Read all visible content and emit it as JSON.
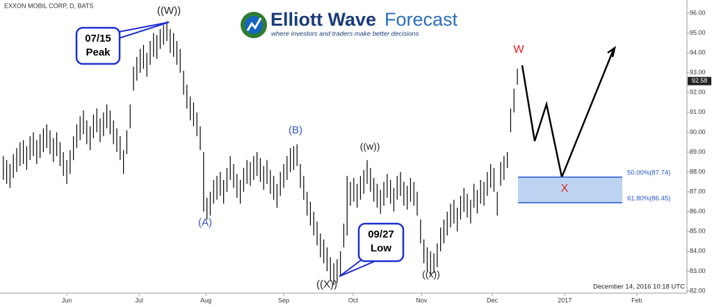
{
  "chart_data": {
    "type": "ohlc",
    "title": "EXXON MOBIL CORP, D, BATS",
    "logo": {
      "name_bold": "Elliott Wave",
      "name_light": "Forecast",
      "tagline": "where investors and traders make better decisions"
    },
    "timestamp": "December 14, 2016 10:18 UTC",
    "high": [
      88.8,
      88.6,
      88.4,
      88.9,
      89.2,
      89.5,
      89.6,
      89.3,
      89.8,
      90.0,
      89.6,
      89.9,
      90.2,
      90.4,
      90.1,
      89.7,
      90.0,
      89.5,
      89.0,
      88.6,
      89.1,
      89.8,
      90.4,
      90.8,
      91.1,
      90.6,
      90.3,
      90.9,
      91.2,
      90.7,
      91.0,
      91.4,
      91.1,
      90.6,
      90.2,
      89.8,
      89.1,
      90.1,
      91.4,
      93.3,
      93.8,
      94.2,
      94.4,
      94.0,
      94.6,
      95.0,
      94.9,
      95.2,
      95.4,
      95.6,
      95.2,
      95.0,
      94.6,
      94.2,
      93.1,
      92.4,
      91.8,
      91.5,
      91.0,
      90.3,
      89.0,
      86.7,
      87.0,
      87.6,
      87.8,
      88.0,
      87.6,
      88.2,
      88.8,
      88.4,
      87.9,
      87.6,
      88.2,
      88.6,
      88.5,
      88.8,
      89.0,
      88.7,
      88.3,
      88.6,
      88.1,
      87.8,
      87.4,
      88.0,
      88.4,
      88.8,
      89.2,
      89.3,
      89.4,
      88.4,
      87.8,
      87.0,
      86.5,
      86.0,
      85.5,
      84.9,
      84.6,
      84.2,
      83.7,
      83.4,
      83.6,
      84.0,
      85.4,
      87.8,
      87.5,
      87.7,
      87.4,
      87.8,
      88.1,
      88.6,
      88.2,
      87.7,
      87.4,
      87.1,
      87.5,
      87.9,
      87.6,
      87.2,
      87.8,
      88.0,
      87.5,
      87.3,
      87.7,
      87.5,
      87.0,
      85.6,
      84.6,
      84.2,
      84.0,
      83.9,
      84.4,
      85.2,
      85.6,
      86.0,
      86.4,
      86.6,
      86.2,
      86.8,
      87.2,
      86.9,
      86.6,
      87.4,
      87.1,
      87.6,
      87.5,
      88.0,
      88.4,
      88.2,
      87.0,
      88.5,
      88.8,
      89.0,
      91.2,
      92.2,
      93.2
    ],
    "low": [
      87.6,
      87.4,
      87.2,
      87.7,
      88.0,
      88.3,
      88.4,
      88.1,
      88.6,
      88.8,
      88.4,
      88.7,
      89.0,
      89.2,
      88.9,
      88.5,
      88.8,
      88.3,
      87.8,
      87.4,
      87.9,
      88.6,
      89.2,
      89.6,
      89.9,
      89.4,
      89.1,
      89.7,
      90.0,
      89.5,
      89.8,
      90.2,
      89.9,
      89.4,
      89.0,
      88.6,
      87.9,
      88.9,
      90.2,
      92.1,
      92.6,
      93.0,
      93.2,
      92.8,
      93.4,
      93.8,
      93.7,
      94.2,
      94.4,
      94.6,
      94.0,
      93.8,
      93.4,
      93.0,
      91.9,
      91.2,
      90.6,
      90.3,
      89.8,
      89.1,
      86.0,
      85.6,
      85.8,
      86.4,
      86.6,
      86.8,
      86.4,
      87.0,
      87.6,
      87.2,
      86.7,
      86.4,
      87.0,
      87.4,
      87.3,
      87.6,
      87.8,
      87.5,
      87.1,
      87.4,
      86.9,
      86.6,
      86.2,
      86.8,
      87.2,
      87.6,
      88.0,
      88.1,
      88.3,
      87.2,
      86.6,
      85.8,
      85.3,
      84.8,
      84.3,
      83.7,
      83.4,
      83.0,
      82.5,
      82.3,
      82.4,
      82.8,
      84.2,
      84.8,
      86.3,
      86.5,
      86.2,
      86.6,
      86.9,
      87.4,
      87.0,
      86.5,
      86.2,
      85.9,
      86.3,
      86.7,
      86.4,
      86.0,
      86.6,
      86.8,
      86.3,
      86.1,
      86.5,
      86.3,
      85.8,
      84.4,
      83.4,
      83.0,
      82.8,
      82.9,
      83.2,
      84.0,
      84.4,
      84.8,
      85.2,
      85.4,
      85.0,
      85.6,
      86.0,
      85.7,
      85.4,
      86.2,
      85.9,
      86.4,
      86.3,
      86.8,
      87.2,
      87.0,
      85.8,
      87.3,
      87.6,
      88.2,
      90.0,
      91.0,
      92.4
    ],
    "last_value": 92.58,
    "zone": {
      "top": 87.74,
      "bottom": 86.45,
      "labels": [
        "50.00%(87.74)",
        "61.80%(86.45)"
      ]
    },
    "wave_labels": [
      "((W))",
      "(A)",
      "(B)",
      "((X))",
      "((w))",
      "((x))",
      "W",
      "X"
    ],
    "callouts": [
      [
        "07/15",
        "Peak"
      ],
      [
        "09/27",
        "Low"
      ]
    ],
    "ylim": [
      82,
      96
    ],
    "yticks": [
      {
        "value": 82,
        "label": "82.00"
      },
      {
        "value": 83,
        "label": "83.00"
      },
      {
        "value": 84,
        "label": "84.00"
      },
      {
        "value": 85,
        "label": "85.00"
      },
      {
        "value": 86,
        "label": "86.00"
      },
      {
        "value": 87,
        "label": "87.00"
      },
      {
        "value": 88,
        "label": "88.00"
      },
      {
        "value": 89,
        "label": "89.00"
      },
      {
        "value": 90,
        "label": "90.00"
      },
      {
        "value": 91,
        "label": "91.00"
      },
      {
        "value": 92,
        "label": "92.00"
      },
      {
        "value": 93,
        "label": "93.00"
      },
      {
        "value": 94,
        "label": "94.00"
      },
      {
        "value": 95,
        "label": "95.00"
      },
      {
        "value": 96,
        "label": "96.00"
      }
    ],
    "xlim": [
      -1,
      204.2
    ],
    "xticks": [
      {
        "value": 19,
        "label": "Jun"
      },
      {
        "value": 40.7,
        "label": "Jul"
      },
      {
        "value": 60.7,
        "label": "Aug"
      },
      {
        "value": 84,
        "label": "Sep"
      },
      {
        "value": 104.8,
        "label": "Oct"
      },
      {
        "value": 125.3,
        "label": "Nov"
      },
      {
        "value": 146.5,
        "label": "Dec"
      },
      {
        "value": 168.2,
        "label": "2017"
      },
      {
        "value": 189.8,
        "label": "Feb"
      }
    ]
  }
}
